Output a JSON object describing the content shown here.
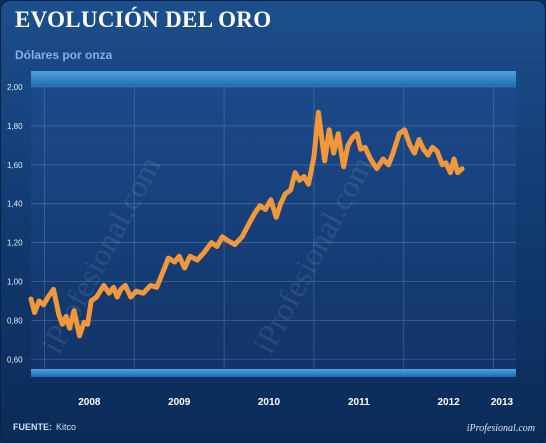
{
  "header": {
    "title": "EVOLUCIÓN DEL ORO",
    "subtitle": "Dólares por onza"
  },
  "footer": {
    "source_label": "FUENTE:",
    "source_value": "Kitco",
    "brand": "iProfesional.com"
  },
  "watermark": {
    "text": "iProfesional.com"
  },
  "colors": {
    "line": "#f2973a",
    "plot_bg": "#163e78",
    "band": "#2f86c8",
    "grid": "#5d86b8"
  },
  "chart_data": {
    "type": "line",
    "title": "EVOLUCIÓN DEL ORO",
    "ylabel": "Dólares por onza",
    "xlabel": "",
    "ylim": [
      0.55,
      2.0
    ],
    "xlim": [
      2007.85,
      2013.25
    ],
    "grid": true,
    "y_ticks": [
      "2,00",
      "1,80",
      "1,60",
      "1,40",
      "1,20",
      "1,00",
      "0,80",
      "0,60"
    ],
    "x_ticks": [
      "2008",
      "2009",
      "2010",
      "2011",
      "2012",
      "2013"
    ],
    "series": [
      {
        "points": [
          [
            2007.85,
            0.91
          ],
          [
            2007.89,
            0.84
          ],
          [
            2007.94,
            0.9
          ],
          [
            2007.99,
            0.88
          ],
          [
            2008.04,
            0.92
          ],
          [
            2008.1,
            0.96
          ],
          [
            2008.16,
            0.83
          ],
          [
            2008.2,
            0.78
          ],
          [
            2008.24,
            0.82
          ],
          [
            2008.28,
            0.76
          ],
          [
            2008.33,
            0.85
          ],
          [
            2008.39,
            0.72
          ],
          [
            2008.44,
            0.79
          ],
          [
            2008.48,
            0.78
          ],
          [
            2008.52,
            0.9
          ],
          [
            2008.58,
            0.92
          ],
          [
            2008.66,
            0.98
          ],
          [
            2008.72,
            0.94
          ],
          [
            2008.77,
            0.97
          ],
          [
            2008.81,
            0.92
          ],
          [
            2008.85,
            0.96
          ],
          [
            2008.9,
            0.98
          ],
          [
            2008.96,
            0.92
          ],
          [
            2009.02,
            0.95
          ],
          [
            2009.1,
            0.94
          ],
          [
            2009.18,
            0.98
          ],
          [
            2009.25,
            0.97
          ],
          [
            2009.32,
            1.05
          ],
          [
            2009.38,
            1.12
          ],
          [
            2009.45,
            1.1
          ],
          [
            2009.5,
            1.13
          ],
          [
            2009.56,
            1.07
          ],
          [
            2009.62,
            1.13
          ],
          [
            2009.7,
            1.11
          ],
          [
            2009.78,
            1.15
          ],
          [
            2009.86,
            1.2
          ],
          [
            2009.92,
            1.18
          ],
          [
            2009.98,
            1.23
          ],
          [
            2010.04,
            1.21
          ],
          [
            2010.12,
            1.19
          ],
          [
            2010.2,
            1.23
          ],
          [
            2010.28,
            1.3
          ],
          [
            2010.34,
            1.35
          ],
          [
            2010.4,
            1.39
          ],
          [
            2010.46,
            1.37
          ],
          [
            2010.52,
            1.42
          ],
          [
            2010.58,
            1.33
          ],
          [
            2010.63,
            1.4
          ],
          [
            2010.68,
            1.45
          ],
          [
            2010.74,
            1.47
          ],
          [
            2010.79,
            1.56
          ],
          [
            2010.84,
            1.52
          ],
          [
            2010.89,
            1.54
          ],
          [
            2010.94,
            1.5
          ],
          [
            2011.0,
            1.64
          ],
          [
            2011.05,
            1.87
          ],
          [
            2011.12,
            1.62
          ],
          [
            2011.17,
            1.78
          ],
          [
            2011.22,
            1.66
          ],
          [
            2011.27,
            1.76
          ],
          [
            2011.33,
            1.59
          ],
          [
            2011.38,
            1.7
          ],
          [
            2011.43,
            1.74
          ],
          [
            2011.48,
            1.76
          ],
          [
            2011.52,
            1.68
          ],
          [
            2011.57,
            1.69
          ],
          [
            2011.63,
            1.63
          ],
          [
            2011.7,
            1.58
          ],
          [
            2011.77,
            1.63
          ],
          [
            2011.83,
            1.6
          ],
          [
            2011.88,
            1.66
          ],
          [
            2011.95,
            1.76
          ],
          [
            2012.01,
            1.78
          ],
          [
            2012.07,
            1.7
          ],
          [
            2012.12,
            1.66
          ],
          [
            2012.17,
            1.73
          ],
          [
            2012.22,
            1.68
          ],
          [
            2012.27,
            1.65
          ],
          [
            2012.32,
            1.69
          ],
          [
            2012.37,
            1.67
          ],
          [
            2012.43,
            1.6
          ],
          [
            2012.47,
            1.61
          ],
          [
            2012.52,
            1.56
          ],
          [
            2012.56,
            1.63
          ],
          [
            2012.6,
            1.56
          ],
          [
            2012.65,
            1.58
          ]
        ]
      }
    ]
  }
}
